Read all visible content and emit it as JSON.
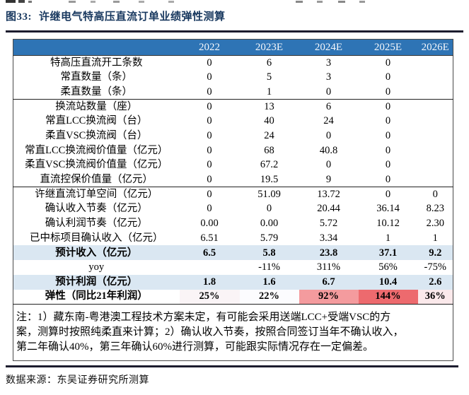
{
  "header": {
    "figure_label": "图33:",
    "title": "许继电气特高压直流订单业绩弹性测算"
  },
  "table": {
    "columns": [
      "",
      "2022",
      "2023E",
      "2024E",
      "2025E",
      "2026E"
    ],
    "rows": [
      {
        "label": "特高压直流开工条数",
        "values": [
          "0",
          "6",
          "3",
          "0",
          ""
        ]
      },
      {
        "label": "常直数量（条）",
        "values": [
          "0",
          "5",
          "3",
          "0",
          ""
        ]
      },
      {
        "label": "柔直数量（条）",
        "values": [
          "0",
          "1",
          "0",
          "0",
          ""
        ],
        "section_end": true
      },
      {
        "label": "换流站数量（座）",
        "values": [
          "0",
          "13",
          "6",
          "0",
          ""
        ]
      },
      {
        "label": "常直LCC换流阀（台）",
        "values": [
          "0",
          "40",
          "24",
          "0",
          ""
        ]
      },
      {
        "label": "柔直VSC换流阀（台）",
        "values": [
          "0",
          "24",
          "0",
          "0",
          ""
        ]
      },
      {
        "label": "常直LCC换流阀价值量（亿元）",
        "values": [
          "0",
          "68",
          "40.8",
          "0",
          ""
        ]
      },
      {
        "label": "柔直VSC换流阀价值量（亿元）",
        "values": [
          "0",
          "67.2",
          "0",
          "0",
          ""
        ]
      },
      {
        "label": "直流控保价值量（亿元）",
        "values": [
          "0",
          "19.5",
          "9",
          "0",
          ""
        ],
        "section_end": true
      },
      {
        "label": "许继直流订单空间（亿元）",
        "values": [
          "0",
          "51.09",
          "13.72",
          "0",
          "0"
        ]
      },
      {
        "label": "确认收入节奏（亿元）",
        "values": [
          "0",
          "0",
          "20.44",
          "36.14",
          "8.23"
        ]
      },
      {
        "label": "确认利润节奏（亿元）",
        "values": [
          "0.00",
          "0.00",
          "5.72",
          "10.12",
          "2.30"
        ]
      },
      {
        "label": "已中标项目确认收入（亿元）",
        "values": [
          "6.51",
          "5.79",
          "3.34",
          "1",
          "1"
        ]
      },
      {
        "label": "预计收入（亿元）",
        "values": [
          "6.5",
          "5.8",
          "23.8",
          "37.1",
          "9.2"
        ],
        "style": "highlight"
      },
      {
        "label": "yoy",
        "values": [
          "",
          "-11%",
          "311%",
          "56%",
          "-75%"
        ]
      },
      {
        "label": "预计利润（亿元）",
        "values": [
          "1.8",
          "1.6",
          "6.7",
          "10.4",
          "2.6"
        ],
        "style": "highlight"
      },
      {
        "label": "弹性（同比21年利润）",
        "values": [
          "25%",
          "22%",
          "92%",
          "144%",
          "36%"
        ],
        "style": "elastic",
        "cell_colors": [
          "#FAF4F6",
          "#FCFCFE",
          "#F49B9E",
          "#ED6A6E",
          "#FBE9EB"
        ]
      }
    ],
    "note_lines": [
      "注：1）藏东南-粤港澳工程技术方案未定，有可能会采用送端LCC+受端VSC的方",
      "案，测算时按照纯柔直来计算；2）确认收入节奏，按照合同签订当年不确认收入，",
      "第二年确认40%，第三年确认60%进行测算，可能跟实际情况存在一定偏差。"
    ]
  },
  "footer": {
    "source": "数据来源：东吴证券研究所测算"
  },
  "colors": {
    "header_bg": "#2E74B5",
    "highlight_bg": "#DAE7F2",
    "title_color": "#17375E",
    "rule_color": "#1c1c2e",
    "heat_strong": "#ED6A6E",
    "heat_medium": "#F49B9E",
    "heat_light": "#FBE9EB"
  }
}
